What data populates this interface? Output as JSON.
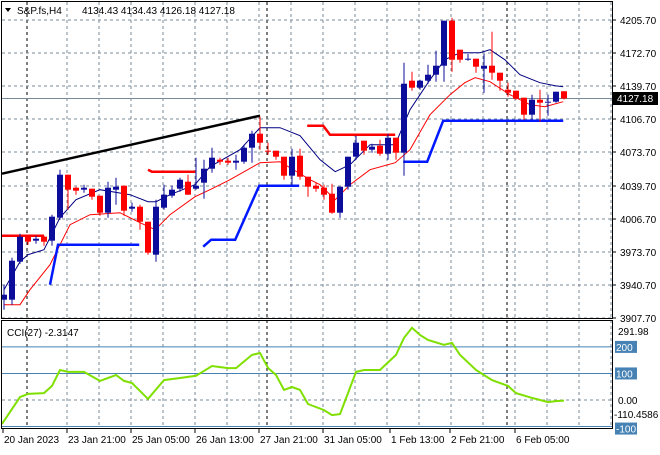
{
  "header": {
    "symbol_label": "S&P.fs,H4",
    "ohlc": "4134.43 4134.43 4126.18 4127.18"
  },
  "current_price": "4127.18",
  "colors": {
    "bull": "#0d0d9c",
    "bear": "#ff0000",
    "ma_fast": "#000080",
    "ma_slow": "#ff0000",
    "stop_blue": "#0018ff",
    "stop_red": "#ff0000",
    "trend": "#000000",
    "cci": "#7fe000",
    "levels": "#4682b4"
  },
  "chart_data": [
    {
      "type": "candlestick",
      "title": "S&P.fs,H4",
      "yaxis_ticks": [
        "4205.70",
        "4172.70",
        "4139.70",
        "4106.70",
        "4073.70",
        "4039.70",
        "4006.70",
        "3973.70",
        "3940.70",
        "3907.70"
      ],
      "xaxis_ticks": [
        "20 Jan 2023",
        "23 Jan 21:00",
        "25 Jan 05:00",
        "26 Jan 13:00",
        "27 Jan 21:00",
        "31 Jan 05:00",
        "1 Feb 13:00",
        "2 Feb 21:00",
        "6 Feb 05:00"
      ],
      "ylim": [
        3905.7,
        4223.7
      ],
      "ohlc": [
        [
          3926,
          3941,
          3916,
          3931
        ],
        [
          3926,
          3968,
          3921,
          3965
        ],
        [
          3964,
          3992,
          3962,
          3989
        ],
        [
          3989,
          3991,
          3981,
          3984
        ],
        [
          3985,
          3990,
          3982,
          3987
        ],
        [
          3989,
          3990,
          3980,
          3984
        ],
        [
          3985,
          4011,
          3980,
          4009
        ],
        [
          4008,
          4056,
          4006,
          4051
        ],
        [
          4051,
          4051,
          4016,
          4036
        ],
        [
          4038,
          4039,
          4031,
          4035
        ],
        [
          4036,
          4041,
          4033,
          4038
        ],
        [
          4037,
          4037,
          4026,
          4029
        ],
        [
          4030,
          4030,
          4010,
          4013
        ],
        [
          4013,
          4044,
          4008,
          4038
        ],
        [
          4036,
          4048,
          4021,
          4039
        ],
        [
          4040,
          4040,
          4010,
          4015
        ],
        [
          4017,
          4023,
          4014,
          4019
        ],
        [
          4019,
          4021,
          3996,
          4004
        ],
        [
          4004,
          4004,
          3971,
          3973
        ],
        [
          3971,
          4026,
          3964,
          4019
        ],
        [
          4018,
          4041,
          4016,
          4031
        ],
        [
          4030,
          4040,
          4028,
          4036
        ],
        [
          4037,
          4048,
          4034,
          4046
        ],
        [
          4044,
          4051,
          4031,
          4031
        ],
        [
          4037,
          4068,
          4036,
          4040
        ],
        [
          4043,
          4066,
          4027,
          4057
        ],
        [
          4057,
          4078,
          4053,
          4068
        ],
        [
          4066,
          4068,
          4061,
          4064
        ],
        [
          4065,
          4068,
          4061,
          4063
        ],
        [
          4063,
          4071,
          4056,
          4065
        ],
        [
          4064,
          4081,
          4062,
          4078
        ],
        [
          4078,
          4095,
          4063,
          4092
        ],
        [
          4092,
          4109,
          4076,
          4083
        ],
        [
          4075,
          4083,
          4071,
          4074
        ],
        [
          4075,
          4075,
          4066,
          4069
        ],
        [
          4069,
          4069,
          4046,
          4050
        ],
        [
          4050,
          4077,
          4041,
          4069
        ],
        [
          4070,
          4077,
          4046,
          4049
        ],
        [
          4049,
          4049,
          4029,
          4039
        ],
        [
          4040,
          4043,
          4034,
          4037
        ],
        [
          4038,
          4041,
          4026,
          4031
        ],
        [
          4032,
          4042,
          4012,
          4013
        ],
        [
          4013,
          4039,
          4008,
          4039
        ],
        [
          4039,
          4069,
          4036,
          4069
        ],
        [
          4069,
          4090,
          4066,
          4083
        ],
        [
          4085,
          4085,
          4071,
          4075
        ],
        [
          4076,
          4082,
          4073,
          4079
        ],
        [
          4080,
          4086,
          4070,
          4072
        ],
        [
          4072,
          4092,
          4066,
          4088
        ],
        [
          4088,
          4088,
          4066,
          4073
        ],
        [
          4073,
          4163,
          4050,
          4142
        ],
        [
          4145,
          4154,
          4135,
          4138
        ],
        [
          4138,
          4146,
          4136,
          4145
        ],
        [
          4145,
          4161,
          4142,
          4151
        ],
        [
          4151,
          4175,
          4144,
          4160
        ],
        [
          4160,
          4205,
          4144,
          4205
        ],
        [
          4205,
          4208,
          4154,
          4166
        ],
        [
          4176,
          4176,
          4163,
          4166
        ],
        [
          4166,
          4172,
          4165,
          4167
        ],
        [
          4167,
          4167,
          4153,
          4159
        ],
        [
          4157,
          4172,
          4133,
          4160
        ],
        [
          4160,
          4194,
          4146,
          4153
        ],
        [
          4153,
          4153,
          4135,
          4145
        ],
        [
          4136,
          4143,
          4129,
          4133
        ],
        [
          4135,
          4135,
          4126,
          4127
        ],
        [
          4128,
          4128,
          4106,
          4111
        ],
        [
          4111,
          4131,
          4106,
          4126
        ],
        [
          4126,
          4136,
          4104,
          4123
        ],
        [
          4123,
          4131,
          4110,
          4124
        ],
        [
          4124,
          4134,
          4123,
          4134
        ],
        [
          4134.43,
          4134.43,
          4126.18,
          4127.18
        ]
      ],
      "overlays": {
        "ma_fast": [
          [
            0,
            3936
          ],
          [
            2,
            3964
          ],
          [
            3,
            3971
          ],
          [
            5,
            3976
          ],
          [
            7,
            4008
          ],
          [
            9,
            4026
          ],
          [
            12,
            4036
          ],
          [
            15.75,
            4031
          ],
          [
            18,
            4024
          ],
          [
            19,
            4024
          ],
          [
            20.75,
            4031
          ],
          [
            23.875,
            4041
          ],
          [
            25.75,
            4059
          ],
          [
            29.5,
            4076
          ],
          [
            32,
            4098
          ],
          [
            34.5,
            4098
          ],
          [
            37,
            4090
          ],
          [
            39.5,
            4066
          ],
          [
            41.4,
            4054
          ],
          [
            43.25,
            4061
          ],
          [
            45.75,
            4081
          ],
          [
            48.9,
            4081
          ],
          [
            50.75,
            4116
          ],
          [
            53.25,
            4146
          ],
          [
            55.1,
            4166
          ],
          [
            57,
            4173
          ],
          [
            59.5,
            4173
          ],
          [
            60.75,
            4176
          ],
          [
            62.6,
            4166
          ],
          [
            64.5,
            4151
          ],
          [
            67,
            4143
          ],
          [
            68.9,
            4140
          ],
          [
            69.9,
            4139
          ]
        ],
        "ma_slow": [
          [
            0,
            3921
          ],
          [
            2,
            3921
          ],
          [
            3.25,
            3936
          ],
          [
            5.75,
            3961
          ],
          [
            7,
            3981
          ],
          [
            8.25,
            4001
          ],
          [
            10.75,
            4011
          ],
          [
            14.5,
            4013
          ],
          [
            17,
            4003
          ],
          [
            18.9,
            3996
          ],
          [
            20.75,
            4011
          ],
          [
            23.875,
            4029
          ],
          [
            25.75,
            4036
          ],
          [
            28.25,
            4046
          ],
          [
            32,
            4063
          ],
          [
            34.5,
            4064
          ],
          [
            38.25,
            4046
          ],
          [
            39.5,
            4041
          ],
          [
            41.4,
            4026
          ],
          [
            43.25,
            4041
          ],
          [
            45.75,
            4056
          ],
          [
            48.9,
            4063
          ],
          [
            50.75,
            4076
          ],
          [
            53.25,
            4111
          ],
          [
            55.75,
            4131
          ],
          [
            57.6,
            4143
          ],
          [
            58.9,
            4148
          ],
          [
            60.75,
            4144
          ],
          [
            63.25,
            4131
          ],
          [
            65.75,
            4121
          ],
          [
            67.6,
            4119
          ],
          [
            69.9,
            4124
          ]
        ],
        "stop_blue": [
          [
            [
              5.75,
              3941
            ],
            [
              6.75,
              3981
            ],
            [
              16.9,
              3981
            ]
          ],
          [
            [
              24.9,
              3979
            ],
            [
              25.9,
              3986
            ],
            [
              28.9,
              3986
            ],
            [
              31.9,
              4040
            ],
            [
              36.9,
              4040
            ]
          ],
          [
            [
              49.9,
              4064
            ],
            [
              52.9,
              4064
            ],
            [
              54.9,
              4105
            ],
            [
              69.9,
              4105
            ]
          ]
        ],
        "stop_red": [
          [
            [
              -0.25,
              3990
            ],
            [
              5,
              3990
            ]
          ],
          [
            [
              18,
              4056
            ],
            [
              18.5,
              4054
            ],
            [
              23.9,
              4054
            ]
          ],
          [
            [
              37.9,
              4100
            ],
            [
              39.9,
              4100
            ],
            [
              40.75,
              4091
            ],
            [
              48.9,
              4091
            ]
          ]
        ],
        "trendline": [
          [
            -0.25,
            4052
          ],
          [
            32,
            4110
          ]
        ]
      }
    },
    {
      "type": "line",
      "title": "CCI(27) -2.3147",
      "yaxis_ticks": [
        "291.98",
        "200",
        "100",
        "0.00",
        "-110.4586"
      ],
      "levels": [
        200,
        100,
        0,
        -100
      ],
      "level_labels": [
        "200",
        "100",
        "-100"
      ],
      "ylim": [
        -110.4586,
        291.98
      ],
      "points": [
        [
          -0.25,
          -90
        ],
        [
          2,
          11
        ],
        [
          3,
          23
        ],
        [
          5,
          26
        ],
        [
          6,
          53
        ],
        [
          7,
          113
        ],
        [
          8,
          106
        ],
        [
          10,
          106
        ],
        [
          12,
          72
        ],
        [
          14,
          94
        ],
        [
          15,
          72
        ],
        [
          16,
          64
        ],
        [
          18,
          4
        ],
        [
          20,
          75
        ],
        [
          22,
          83
        ],
        [
          24,
          91
        ],
        [
          26,
          128
        ],
        [
          28,
          120
        ],
        [
          29,
          120
        ],
        [
          31,
          170
        ],
        [
          32,
          177
        ],
        [
          33,
          121
        ],
        [
          34,
          94
        ],
        [
          35,
          38
        ],
        [
          36,
          49
        ],
        [
          37,
          38
        ],
        [
          38,
          -15
        ],
        [
          40,
          -38
        ],
        [
          41,
          -57
        ],
        [
          42,
          -53
        ],
        [
          43,
          26
        ],
        [
          44,
          106
        ],
        [
          45,
          113
        ],
        [
          47,
          113
        ],
        [
          49,
          170
        ],
        [
          50,
          234
        ],
        [
          51,
          272
        ],
        [
          52,
          245
        ],
        [
          53,
          226
        ],
        [
          55,
          208
        ],
        [
          56,
          215
        ],
        [
          57,
          170
        ],
        [
          59,
          113
        ],
        [
          61,
          75
        ],
        [
          63,
          53
        ],
        [
          64,
          26
        ],
        [
          66,
          8
        ],
        [
          68,
          -8
        ],
        [
          69,
          -4
        ],
        [
          70,
          -2.3
        ]
      ]
    }
  ]
}
